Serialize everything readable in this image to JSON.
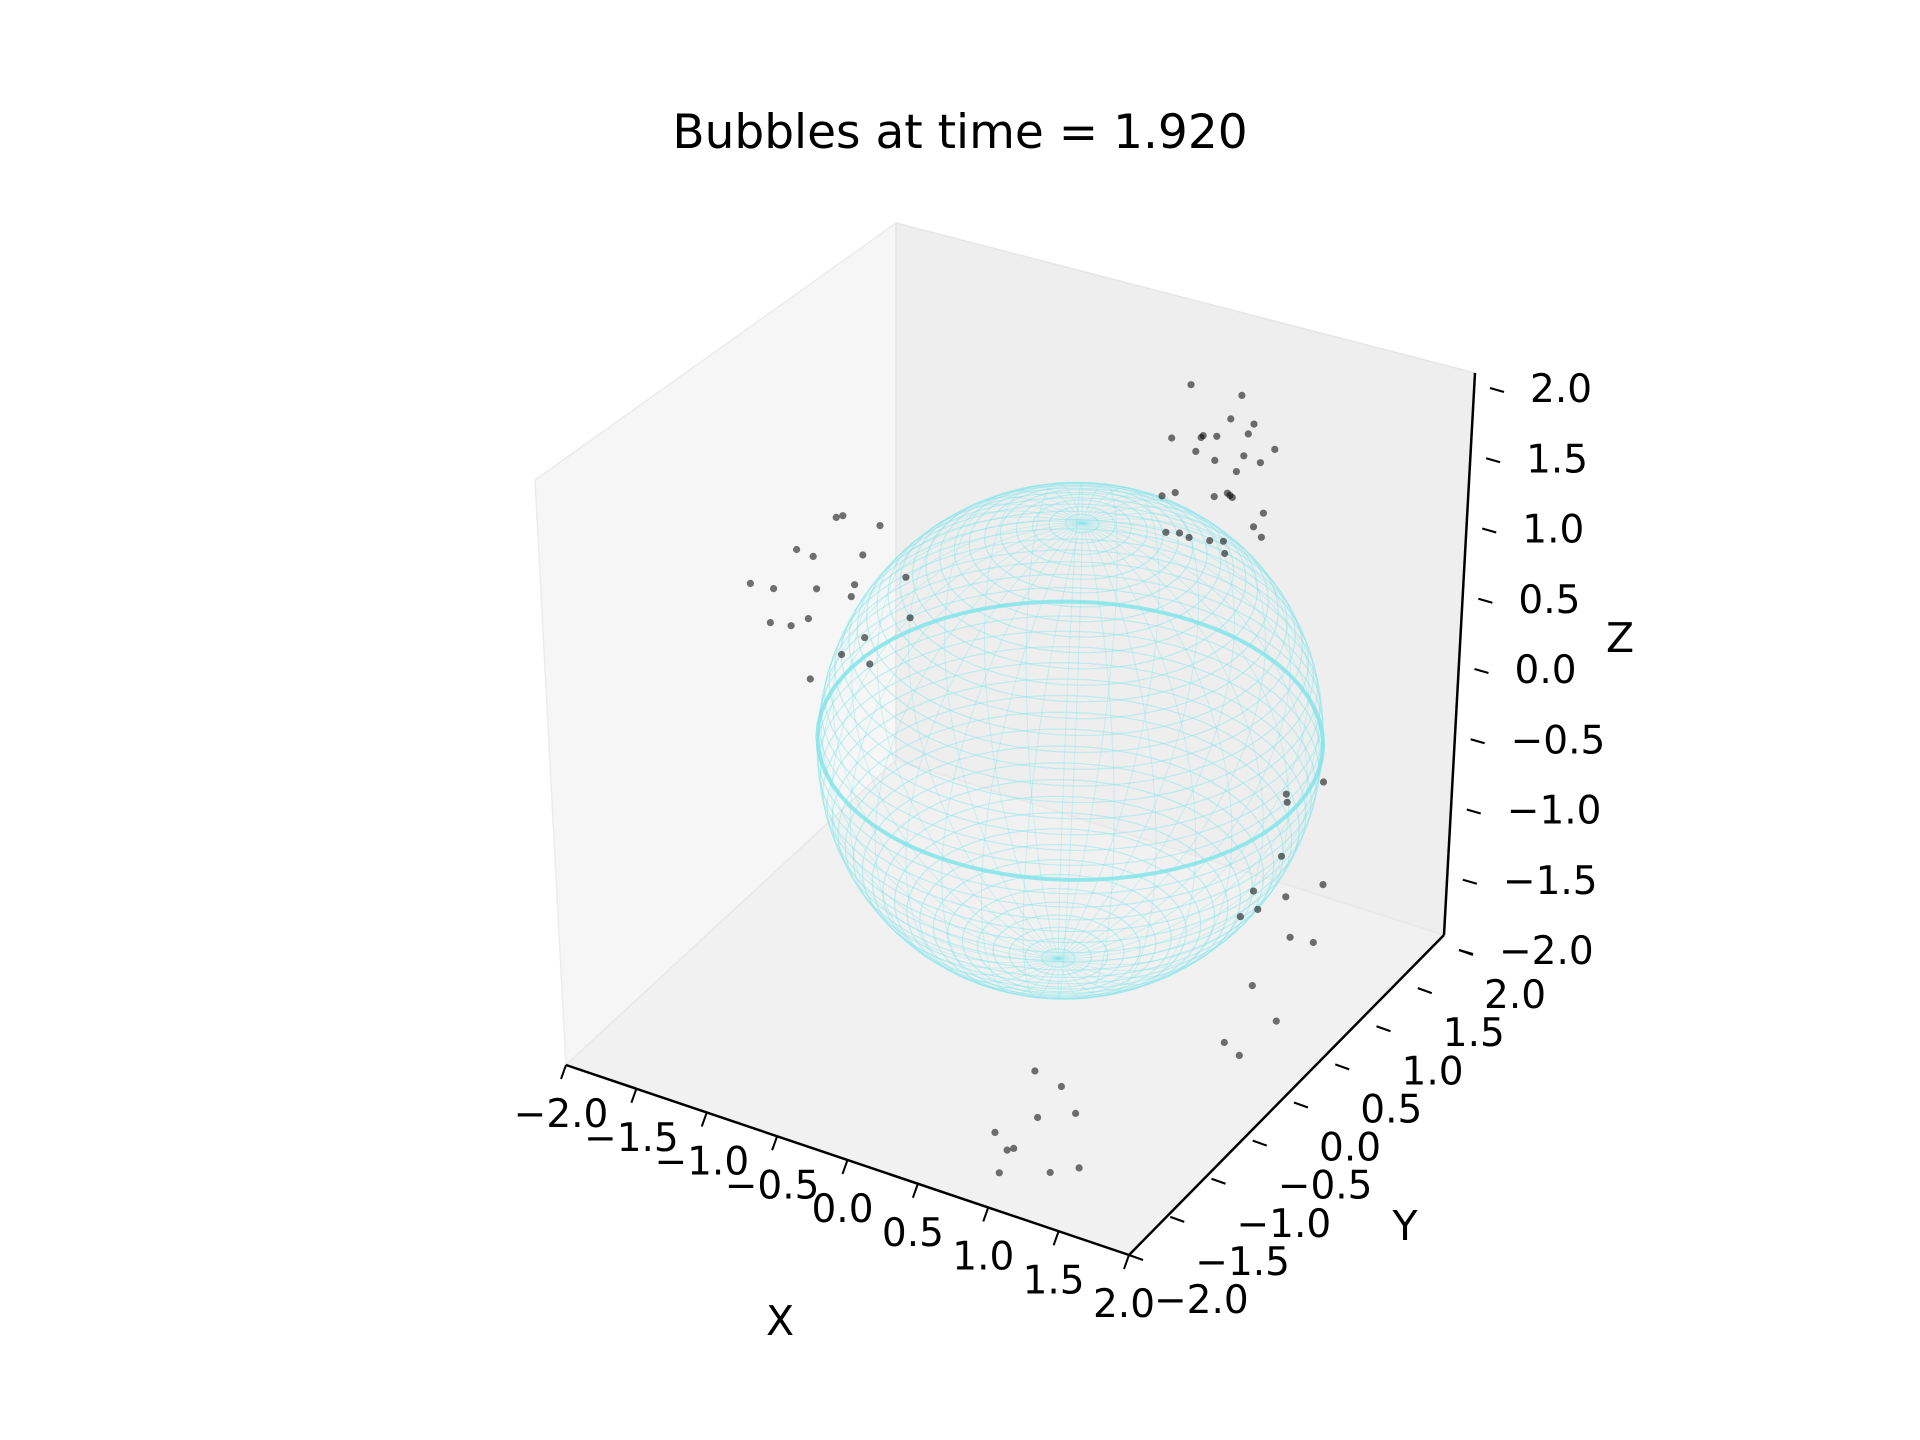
{
  "chart_data": {
    "type": "scatter",
    "projection": "3d",
    "title": "Bubbles at time = 1.920",
    "xlabel": "X",
    "ylabel": "Y",
    "zlabel": "Z",
    "xlim": [
      -2.0,
      2.0
    ],
    "ylim": [
      -2.0,
      2.0
    ],
    "zlim": [
      -2.0,
      2.0
    ],
    "x_ticks": [
      "−2.0",
      "−1.5",
      "−1.0",
      "−0.5",
      "0.0",
      "0.5",
      "1.0",
      "1.5",
      "2.0"
    ],
    "y_ticks": [
      "−2.0",
      "−1.5",
      "−1.0",
      "−0.5",
      "0.0",
      "0.5",
      "1.0",
      "1.5",
      "2.0"
    ],
    "z_ticks": [
      "−2.0",
      "−1.5",
      "−1.0",
      "−0.5",
      "0.0",
      "0.5",
      "1.0",
      "1.5",
      "2.0"
    ],
    "grid": false,
    "point_color": "#000000",
    "point_alpha": 0.55,
    "sphere": {
      "center": [
        0.3,
        0.0,
        0.0
      ],
      "radius": 1.55,
      "color": "#7fe5ea",
      "style": "translucent wireframe surface"
    },
    "series": [
      {
        "cluster": "upper-center dense",
        "points": [
          [
            0.55,
            1.2,
            1.6
          ],
          [
            0.7,
            1.1,
            1.3
          ],
          [
            0.4,
            1.3,
            1.5
          ],
          [
            0.8,
            0.9,
            1.1
          ],
          [
            0.6,
            1.4,
            1.8
          ],
          [
            0.3,
            1.0,
            1.2
          ],
          [
            0.9,
            1.2,
            1.0
          ],
          [
            0.5,
            0.8,
            1.4
          ],
          [
            0.75,
            1.3,
            1.7
          ],
          [
            0.45,
            1.1,
            0.9
          ],
          [
            0.65,
            1.0,
            1.0
          ],
          [
            0.85,
            1.4,
            1.5
          ],
          [
            0.35,
            1.2,
            1.9
          ],
          [
            0.6,
            0.7,
            1.2
          ],
          [
            0.7,
            1.5,
            1.3
          ],
          [
            0.5,
            1.3,
            1.1
          ],
          [
            0.8,
            1.1,
            1.6
          ],
          [
            0.4,
            0.9,
            1.7
          ],
          [
            0.95,
            1.0,
            1.2
          ],
          [
            0.55,
            1.6,
            1.4
          ],
          [
            0.65,
            1.2,
            0.8
          ],
          [
            0.3,
            1.4,
            1.3
          ],
          [
            0.9,
            0.8,
            1.5
          ],
          [
            0.75,
            1.0,
            1.9
          ],
          [
            0.5,
            1.5,
            1.0
          ],
          [
            0.6,
            1.1,
            1.5
          ],
          [
            0.85,
            1.3,
            1.1
          ],
          [
            0.45,
            0.8,
            1.1
          ],
          [
            0.7,
            1.2,
            1.4
          ],
          [
            0.55,
            1.0,
            1.7
          ]
        ]
      },
      {
        "cluster": "left dense",
        "points": [
          [
            -1.2,
            -0.6,
            0.9
          ],
          [
            -1.0,
            -0.4,
            1.1
          ],
          [
            -1.4,
            -0.8,
            0.7
          ],
          [
            -0.9,
            -0.5,
            0.6
          ],
          [
            -1.1,
            -0.3,
            0.8
          ],
          [
            -1.3,
            -0.7,
            1.2
          ],
          [
            -0.8,
            -0.2,
            0.9
          ],
          [
            -1.5,
            -0.9,
            1.0
          ],
          [
            -1.0,
            -0.6,
            0.5
          ],
          [
            -1.2,
            -0.4,
            1.3
          ],
          [
            -0.7,
            -0.3,
            0.7
          ],
          [
            -1.1,
            -0.8,
            0.4
          ],
          [
            -1.3,
            -0.5,
            0.6
          ],
          [
            -0.9,
            -0.7,
            1.0
          ],
          [
            -1.4,
            -0.3,
            0.9
          ],
          [
            -1.0,
            -0.2,
            1.2
          ],
          [
            -1.2,
            -0.9,
            0.8
          ],
          [
            -0.8,
            -0.6,
            0.5
          ],
          [
            -1.1,
            -0.5,
            1.4
          ],
          [
            -1.5,
            -0.6,
            0.8
          ]
        ]
      },
      {
        "cluster": "right lower scattered",
        "points": [
          [
            1.6,
            0.4,
            -0.6
          ],
          [
            1.8,
            0.2,
            -1.0
          ],
          [
            1.5,
            0.6,
            -0.3
          ],
          [
            1.9,
            -0.1,
            -1.4
          ],
          [
            1.7,
            0.3,
            -0.8
          ],
          [
            1.4,
            0.8,
            -0.5
          ],
          [
            1.8,
            0.5,
            -1.2
          ],
          [
            1.6,
            -0.2,
            -1.6
          ],
          [
            1.5,
            0.1,
            -0.9
          ],
          [
            1.7,
            0.7,
            -0.2
          ],
          [
            1.9,
            0.4,
            -0.7
          ],
          [
            1.6,
            0.0,
            -1.8
          ],
          [
            1.4,
            0.5,
            -1.1
          ],
          [
            1.8,
            -0.3,
            -0.4
          ],
          [
            1.5,
            0.3,
            -1.5
          ]
        ]
      },
      {
        "cluster": "bottom front column",
        "points": [
          [
            1.2,
            -1.6,
            -1.9
          ],
          [
            1.0,
            -1.8,
            -1.7
          ],
          [
            1.3,
            -1.5,
            -1.5
          ],
          [
            0.9,
            -1.7,
            -1.95
          ],
          [
            1.1,
            -1.9,
            -1.6
          ],
          [
            1.4,
            -1.6,
            -1.8
          ],
          [
            1.0,
            -1.5,
            -1.3
          ],
          [
            1.2,
            -1.8,
            -1.4
          ],
          [
            0.8,
            -1.6,
            -1.75
          ],
          [
            1.3,
            -1.7,
            -1.2
          ]
        ]
      }
    ]
  }
}
